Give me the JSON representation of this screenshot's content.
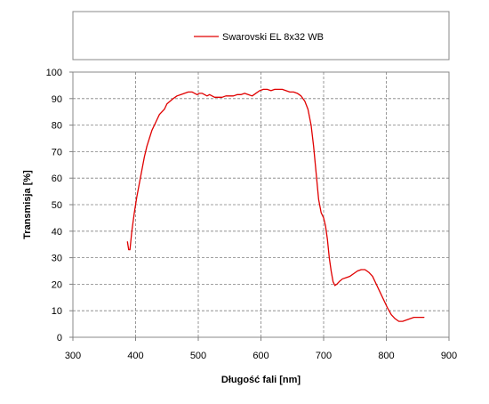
{
  "chart_data": {
    "type": "line",
    "title": "",
    "xlabel": "Długość fali [nm]",
    "ylabel": "Transmisja [%]",
    "xlim": [
      300,
      900
    ],
    "ylim": [
      0,
      100
    ],
    "x_ticks": [
      300,
      400,
      500,
      600,
      700,
      800,
      900
    ],
    "y_ticks": [
      0,
      10,
      20,
      30,
      40,
      50,
      60,
      70,
      80,
      90,
      100
    ],
    "grid": "dashed",
    "legend_position": "top",
    "series": [
      {
        "name": "Swarovski EL 8x32 WB",
        "color": "#e00000",
        "points": [
          [
            387,
            36
          ],
          [
            389,
            33
          ],
          [
            391,
            33
          ],
          [
            394,
            40
          ],
          [
            398,
            47
          ],
          [
            402,
            53
          ],
          [
            406,
            58
          ],
          [
            410,
            63
          ],
          [
            414,
            68
          ],
          [
            418,
            72
          ],
          [
            422,
            75
          ],
          [
            426,
            78
          ],
          [
            430,
            80
          ],
          [
            434,
            82
          ],
          [
            438,
            84
          ],
          [
            442,
            85
          ],
          [
            446,
            86
          ],
          [
            450,
            88
          ],
          [
            455,
            89
          ],
          [
            460,
            90
          ],
          [
            466,
            91
          ],
          [
            472,
            91.5
          ],
          [
            478,
            92
          ],
          [
            484,
            92.5
          ],
          [
            490,
            92.5
          ],
          [
            494,
            92
          ],
          [
            498,
            91.5
          ],
          [
            502,
            92
          ],
          [
            506,
            92
          ],
          [
            510,
            91.5
          ],
          [
            514,
            91
          ],
          [
            518,
            91.5
          ],
          [
            522,
            91
          ],
          [
            526,
            90.5
          ],
          [
            532,
            90.5
          ],
          [
            538,
            90.5
          ],
          [
            544,
            91
          ],
          [
            550,
            91
          ],
          [
            556,
            91
          ],
          [
            562,
            91.5
          ],
          [
            568,
            91.5
          ],
          [
            574,
            92
          ],
          [
            580,
            91.5
          ],
          [
            586,
            91
          ],
          [
            592,
            92
          ],
          [
            598,
            93
          ],
          [
            604,
            93.5
          ],
          [
            610,
            93.5
          ],
          [
            616,
            93
          ],
          [
            622,
            93.5
          ],
          [
            628,
            93.5
          ],
          [
            634,
            93.5
          ],
          [
            640,
            93
          ],
          [
            646,
            92.5
          ],
          [
            652,
            92.5
          ],
          [
            658,
            92
          ],
          [
            664,
            91
          ],
          [
            670,
            89
          ],
          [
            675,
            86
          ],
          [
            680,
            80
          ],
          [
            684,
            72
          ],
          [
            688,
            62
          ],
          [
            692,
            52
          ],
          [
            696,
            47
          ],
          [
            700,
            45
          ],
          [
            703,
            42
          ],
          [
            706,
            37
          ],
          [
            709,
            30
          ],
          [
            712,
            25
          ],
          [
            715,
            21
          ],
          [
            718,
            19.5
          ],
          [
            721,
            20
          ],
          [
            725,
            21
          ],
          [
            730,
            22
          ],
          [
            736,
            22.5
          ],
          [
            742,
            23
          ],
          [
            748,
            24
          ],
          [
            754,
            25
          ],
          [
            760,
            25.5
          ],
          [
            766,
            25.5
          ],
          [
            772,
            24.5
          ],
          [
            778,
            23
          ],
          [
            784,
            20
          ],
          [
            790,
            17
          ],
          [
            796,
            14
          ],
          [
            802,
            11
          ],
          [
            808,
            8.5
          ],
          [
            814,
            7
          ],
          [
            820,
            6
          ],
          [
            826,
            6
          ],
          [
            832,
            6.5
          ],
          [
            838,
            7
          ],
          [
            844,
            7.5
          ],
          [
            850,
            7.5
          ],
          [
            856,
            7.5
          ],
          [
            860,
            7.5
          ]
        ]
      }
    ]
  }
}
